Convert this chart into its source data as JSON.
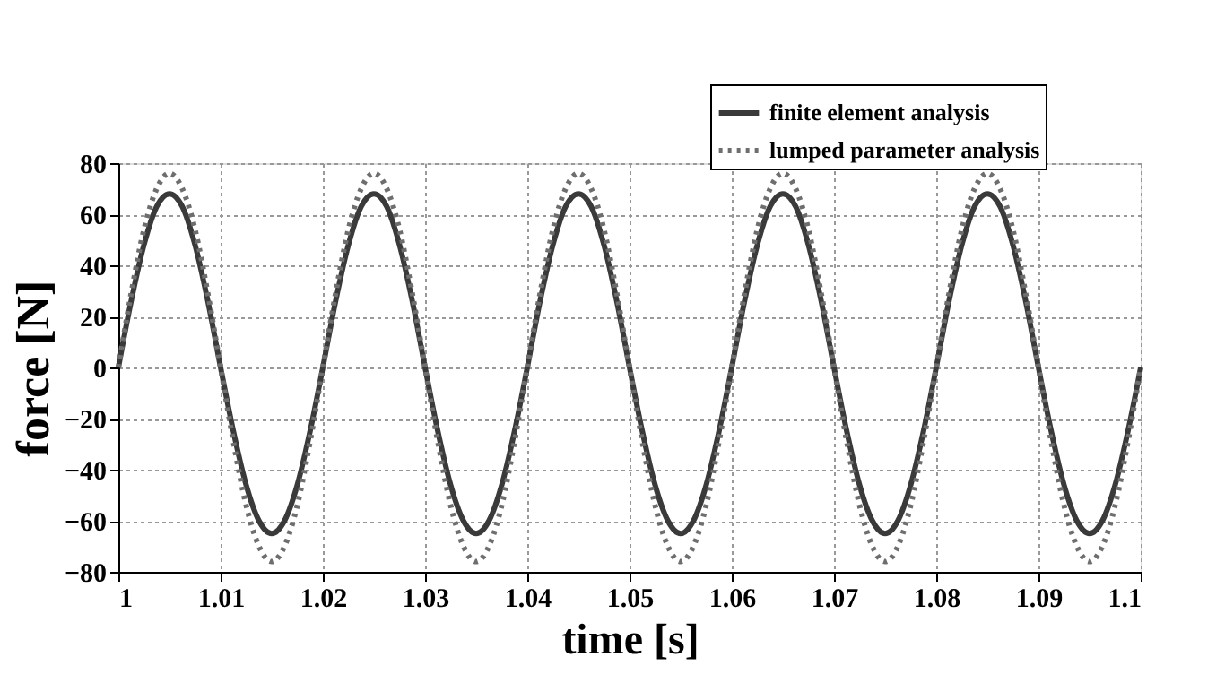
{
  "chart_data": {
    "type": "line",
    "xlabel": "time [s]",
    "ylabel": "force [N]",
    "x": [
      1,
      1.00125,
      1.0025,
      1.00375,
      1.005,
      1.00625,
      1.0075,
      1.00875,
      1.01,
      1.01125,
      1.0125,
      1.01375,
      1.015,
      1.01625,
      1.0175,
      1.01875,
      1.02,
      1.02125,
      1.0225,
      1.02375,
      1.025,
      1.02625,
      1.0275,
      1.02875,
      1.03,
      1.03125,
      1.0325,
      1.03375,
      1.035,
      1.03625,
      1.0375,
      1.03875,
      1.04,
      1.04125,
      1.0425,
      1.04375,
      1.045,
      1.04625,
      1.0475,
      1.04875,
      1.05,
      1.05125,
      1.0525,
      1.05375,
      1.055,
      1.05625,
      1.0575,
      1.05875,
      1.06,
      1.06125,
      1.0625,
      1.06375,
      1.065,
      1.06625,
      1.0675,
      1.06875,
      1.07,
      1.07125,
      1.0725,
      1.07375,
      1.075,
      1.07625,
      1.0775,
      1.07875,
      1.08,
      1.08125,
      1.0825,
      1.08375,
      1.085,
      1.08625,
      1.0875,
      1.08875,
      1.09,
      1.09125,
      1.0925,
      1.09375,
      1.095,
      1.09625,
      1.0975,
      1.09875,
      1.1
    ],
    "series": [
      {
        "name": "finite element analysis",
        "color": "#3a3a3a",
        "line_style": "solid",
        "values": [
          0,
          26,
          48,
          63,
          68,
          63,
          48,
          26,
          0,
          -25,
          -46,
          -60,
          -65,
          -60,
          -46,
          -25,
          0,
          26,
          48,
          63,
          68,
          63,
          48,
          26,
          0,
          -25,
          -46,
          -60,
          -65,
          -60,
          -46,
          -25,
          0,
          26,
          48,
          63,
          68,
          63,
          48,
          26,
          0,
          -25,
          -46,
          -60,
          -65,
          -60,
          -46,
          -25,
          0,
          26,
          48,
          63,
          68,
          63,
          48,
          26,
          0,
          -25,
          -46,
          -60,
          -65,
          -60,
          -46,
          -25,
          0,
          26,
          48,
          63,
          68,
          63,
          48,
          26,
          0,
          -25,
          -46,
          -60,
          -65,
          -60,
          -46,
          -25,
          0
        ]
      },
      {
        "name": "lumped parameter analysis",
        "color": "#6e6e6e",
        "line_style": "dotted",
        "values": [
          0,
          29,
          54,
          70,
          76,
          70,
          54,
          29,
          0,
          -29,
          -54,
          -70,
          -76,
          -70,
          -54,
          -29,
          0,
          29,
          54,
          70,
          76,
          70,
          54,
          29,
          0,
          -29,
          -54,
          -70,
          -76,
          -70,
          -54,
          -29,
          0,
          29,
          54,
          70,
          76,
          70,
          54,
          29,
          0,
          -29,
          -54,
          -70,
          -76,
          -70,
          -54,
          -29,
          0,
          29,
          54,
          70,
          76,
          70,
          54,
          29,
          0,
          -29,
          -54,
          -70,
          -76,
          -70,
          -54,
          -29,
          0,
          29,
          54,
          70,
          76,
          70,
          54,
          29,
          0,
          -29,
          -54,
          -70,
          -76,
          -70,
          -54,
          -29,
          0
        ]
      }
    ],
    "xlim": [
      1,
      1.1
    ],
    "xticks": [
      1,
      1.01,
      1.02,
      1.03,
      1.04,
      1.05,
      1.06,
      1.07,
      1.08,
      1.09,
      1.1
    ],
    "ylim": [
      -80,
      80
    ],
    "yticks": [
      -80,
      -60,
      -40,
      -20,
      0,
      20,
      40,
      60,
      80
    ],
    "grid": true,
    "legend": "top right",
    "marker": "none"
  }
}
